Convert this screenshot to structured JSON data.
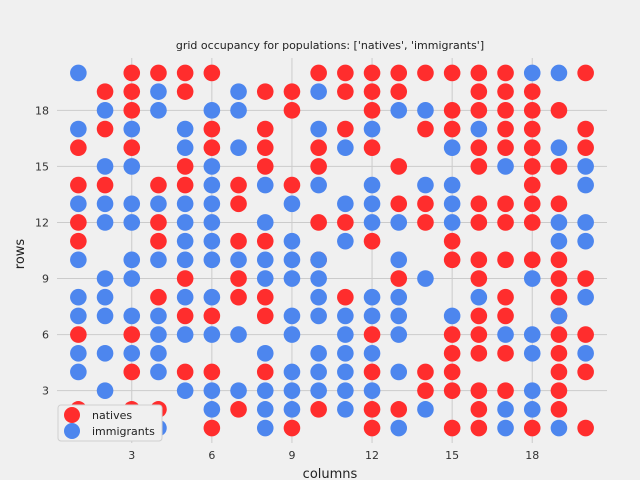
{
  "chart_data": {
    "type": "scatter",
    "title": "grid occupancy for populations: ['natives', 'immigrants']",
    "xlabel": "columns",
    "ylabel": "rows",
    "xlim": [
      0.2,
      20.8
    ],
    "ylim": [
      0.2,
      20.8
    ],
    "xticks": [
      3,
      6,
      9,
      12,
      15,
      18
    ],
    "yticks": [
      3,
      6,
      9,
      12,
      15,
      18
    ],
    "grid": true,
    "legend_position": "lower-left",
    "series": [
      {
        "name": "natives",
        "color": "#ff2d2d",
        "points": [
          [
            3,
            20
          ],
          [
            4,
            20
          ],
          [
            5,
            20
          ],
          [
            6,
            20
          ],
          [
            10,
            20
          ],
          [
            11,
            20
          ],
          [
            12,
            20
          ],
          [
            13,
            20
          ],
          [
            14,
            20
          ],
          [
            15,
            20
          ],
          [
            16,
            20
          ],
          [
            17,
            20
          ],
          [
            20,
            20
          ],
          [
            2,
            19
          ],
          [
            3,
            19
          ],
          [
            5,
            19
          ],
          [
            8,
            19
          ],
          [
            9,
            19
          ],
          [
            11,
            19
          ],
          [
            12,
            19
          ],
          [
            13,
            19
          ],
          [
            16,
            19
          ],
          [
            17,
            19
          ],
          [
            18,
            19
          ],
          [
            3,
            18
          ],
          [
            9,
            18
          ],
          [
            12,
            18
          ],
          [
            15,
            18
          ],
          [
            16,
            18
          ],
          [
            17,
            18
          ],
          [
            18,
            18
          ],
          [
            19,
            18
          ],
          [
            2,
            17
          ],
          [
            6,
            17
          ],
          [
            8,
            17
          ],
          [
            11,
            17
          ],
          [
            14,
            17
          ],
          [
            15,
            17
          ],
          [
            17,
            17
          ],
          [
            18,
            17
          ],
          [
            20,
            17
          ],
          [
            1,
            16
          ],
          [
            3,
            16
          ],
          [
            6,
            16
          ],
          [
            8,
            16
          ],
          [
            10,
            16
          ],
          [
            12,
            16
          ],
          [
            16,
            16
          ],
          [
            17,
            16
          ],
          [
            18,
            16
          ],
          [
            20,
            16
          ],
          [
            5,
            15
          ],
          [
            8,
            15
          ],
          [
            10,
            15
          ],
          [
            13,
            15
          ],
          [
            16,
            15
          ],
          [
            18,
            15
          ],
          [
            19,
            15
          ],
          [
            1,
            14
          ],
          [
            2,
            14
          ],
          [
            4,
            14
          ],
          [
            5,
            14
          ],
          [
            7,
            14
          ],
          [
            9,
            14
          ],
          [
            18,
            14
          ],
          [
            7,
            13
          ],
          [
            13,
            13
          ],
          [
            14,
            13
          ],
          [
            16,
            13
          ],
          [
            17,
            13
          ],
          [
            18,
            13
          ],
          [
            19,
            13
          ],
          [
            1,
            12
          ],
          [
            4,
            12
          ],
          [
            10,
            12
          ],
          [
            11,
            12
          ],
          [
            14,
            12
          ],
          [
            16,
            12
          ],
          [
            17,
            12
          ],
          [
            18,
            12
          ],
          [
            1,
            11
          ],
          [
            4,
            11
          ],
          [
            7,
            11
          ],
          [
            8,
            11
          ],
          [
            12,
            11
          ],
          [
            15,
            11
          ],
          [
            10,
            10
          ],
          [
            15,
            10
          ],
          [
            16,
            10
          ],
          [
            17,
            10
          ],
          [
            18,
            10
          ],
          [
            19,
            10
          ],
          [
            5,
            9
          ],
          [
            7,
            9
          ],
          [
            13,
            9
          ],
          [
            16,
            9
          ],
          [
            19,
            9
          ],
          [
            20,
            9
          ],
          [
            4,
            8
          ],
          [
            7,
            8
          ],
          [
            8,
            8
          ],
          [
            11,
            8
          ],
          [
            17,
            8
          ],
          [
            19,
            8
          ],
          [
            5,
            7
          ],
          [
            6,
            7
          ],
          [
            8,
            7
          ],
          [
            16,
            7
          ],
          [
            17,
            7
          ],
          [
            19,
            7
          ],
          [
            1,
            6
          ],
          [
            3,
            6
          ],
          [
            12,
            6
          ],
          [
            15,
            6
          ],
          [
            16,
            6
          ],
          [
            19,
            6
          ],
          [
            20,
            6
          ],
          [
            15,
            5
          ],
          [
            16,
            5
          ],
          [
            17,
            5
          ],
          [
            19,
            5
          ],
          [
            3,
            4
          ],
          [
            5,
            4
          ],
          [
            6,
            4
          ],
          [
            8,
            4
          ],
          [
            12,
            4
          ],
          [
            14,
            4
          ],
          [
            15,
            4
          ],
          [
            19,
            4
          ],
          [
            20,
            4
          ],
          [
            14,
            3
          ],
          [
            15,
            3
          ],
          [
            16,
            3
          ],
          [
            17,
            3
          ],
          [
            19,
            3
          ],
          [
            1,
            2
          ],
          [
            3,
            2
          ],
          [
            4,
            2
          ],
          [
            7,
            2
          ],
          [
            10,
            2
          ],
          [
            12,
            2
          ],
          [
            13,
            2
          ],
          [
            16,
            2
          ],
          [
            19,
            2
          ],
          [
            2,
            1
          ],
          [
            6,
            1
          ],
          [
            9,
            1
          ],
          [
            12,
            1
          ],
          [
            15,
            1
          ],
          [
            16,
            1
          ],
          [
            18,
            1
          ],
          [
            20,
            1
          ]
        ]
      },
      {
        "name": "immigrants",
        "color": "#4d86ee",
        "points": [
          [
            1,
            20
          ],
          [
            18,
            20
          ],
          [
            19,
            20
          ],
          [
            4,
            19
          ],
          [
            7,
            19
          ],
          [
            10,
            19
          ],
          [
            2,
            18
          ],
          [
            4,
            18
          ],
          [
            6,
            18
          ],
          [
            7,
            18
          ],
          [
            13,
            18
          ],
          [
            14,
            18
          ],
          [
            1,
            17
          ],
          [
            3,
            17
          ],
          [
            5,
            17
          ],
          [
            10,
            17
          ],
          [
            12,
            17
          ],
          [
            16,
            17
          ],
          [
            5,
            16
          ],
          [
            7,
            16
          ],
          [
            11,
            16
          ],
          [
            15,
            16
          ],
          [
            19,
            16
          ],
          [
            2,
            15
          ],
          [
            3,
            15
          ],
          [
            6,
            15
          ],
          [
            17,
            15
          ],
          [
            20,
            15
          ],
          [
            6,
            14
          ],
          [
            8,
            14
          ],
          [
            10,
            14
          ],
          [
            12,
            14
          ],
          [
            14,
            14
          ],
          [
            15,
            14
          ],
          [
            20,
            14
          ],
          [
            1,
            13
          ],
          [
            2,
            13
          ],
          [
            3,
            13
          ],
          [
            4,
            13
          ],
          [
            5,
            13
          ],
          [
            6,
            13
          ],
          [
            9,
            13
          ],
          [
            11,
            13
          ],
          [
            12,
            13
          ],
          [
            15,
            13
          ],
          [
            2,
            12
          ],
          [
            3,
            12
          ],
          [
            5,
            12
          ],
          [
            6,
            12
          ],
          [
            8,
            12
          ],
          [
            12,
            12
          ],
          [
            13,
            12
          ],
          [
            15,
            12
          ],
          [
            19,
            12
          ],
          [
            20,
            12
          ],
          [
            5,
            11
          ],
          [
            6,
            11
          ],
          [
            9,
            11
          ],
          [
            11,
            11
          ],
          [
            19,
            11
          ],
          [
            20,
            11
          ],
          [
            1,
            10
          ],
          [
            3,
            10
          ],
          [
            4,
            10
          ],
          [
            5,
            10
          ],
          [
            6,
            10
          ],
          [
            7,
            10
          ],
          [
            8,
            10
          ],
          [
            9,
            10
          ],
          [
            10,
            10
          ],
          [
            13,
            10
          ],
          [
            2,
            9
          ],
          [
            3,
            9
          ],
          [
            8,
            9
          ],
          [
            9,
            9
          ],
          [
            10,
            9
          ],
          [
            14,
            9
          ],
          [
            18,
            9
          ],
          [
            1,
            8
          ],
          [
            2,
            8
          ],
          [
            5,
            8
          ],
          [
            6,
            8
          ],
          [
            10,
            8
          ],
          [
            12,
            8
          ],
          [
            13,
            8
          ],
          [
            16,
            8
          ],
          [
            20,
            8
          ],
          [
            1,
            7
          ],
          [
            2,
            7
          ],
          [
            3,
            7
          ],
          [
            4,
            7
          ],
          [
            9,
            7
          ],
          [
            10,
            7
          ],
          [
            11,
            7
          ],
          [
            12,
            7
          ],
          [
            13,
            7
          ],
          [
            15,
            7
          ],
          [
            19,
            7
          ],
          [
            4,
            6
          ],
          [
            5,
            6
          ],
          [
            6,
            6
          ],
          [
            7,
            6
          ],
          [
            9,
            6
          ],
          [
            11,
            6
          ],
          [
            13,
            6
          ],
          [
            17,
            6
          ],
          [
            18,
            6
          ],
          [
            1,
            5
          ],
          [
            2,
            5
          ],
          [
            3,
            5
          ],
          [
            4,
            5
          ],
          [
            8,
            5
          ],
          [
            10,
            5
          ],
          [
            11,
            5
          ],
          [
            12,
            5
          ],
          [
            18,
            5
          ],
          [
            20,
            5
          ],
          [
            1,
            4
          ],
          [
            4,
            4
          ],
          [
            9,
            4
          ],
          [
            10,
            4
          ],
          [
            11,
            4
          ],
          [
            13,
            4
          ],
          [
            2,
            3
          ],
          [
            5,
            3
          ],
          [
            6,
            3
          ],
          [
            7,
            3
          ],
          [
            8,
            3
          ],
          [
            9,
            3
          ],
          [
            10,
            3
          ],
          [
            11,
            3
          ],
          [
            12,
            3
          ],
          [
            18,
            3
          ],
          [
            6,
            2
          ],
          [
            8,
            2
          ],
          [
            9,
            2
          ],
          [
            11,
            2
          ],
          [
            14,
            2
          ],
          [
            17,
            2
          ],
          [
            18,
            2
          ],
          [
            4,
            1
          ],
          [
            8,
            1
          ],
          [
            13,
            1
          ],
          [
            17,
            1
          ],
          [
            19,
            1
          ]
        ]
      }
    ]
  }
}
